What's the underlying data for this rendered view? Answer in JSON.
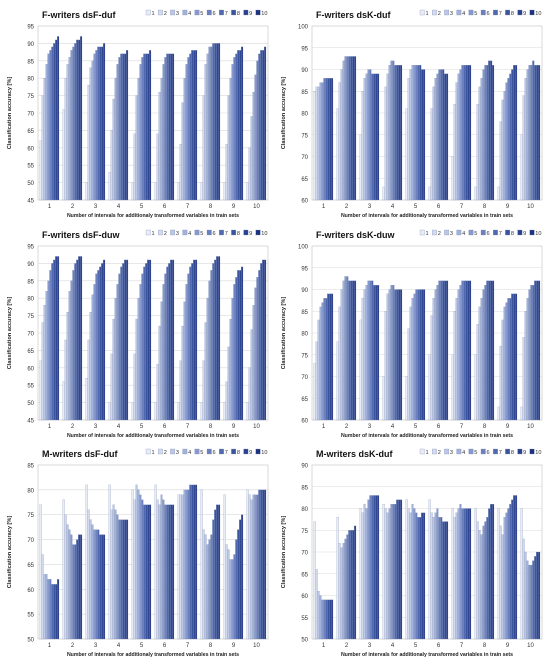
{
  "legend_labels": [
    "1",
    "2",
    "3",
    "4",
    "5",
    "6",
    "7",
    "8",
    "9",
    "10"
  ],
  "colors": [
    "#ffffff",
    "#e8ecf5",
    "#d3daed",
    "#bcc7e4",
    "#a2b1d9",
    "#8799cc",
    "#6b80bd",
    "#5068ad",
    "#3a539e",
    "#2a4190",
    "#1c3280"
  ],
  "chart_data": [
    {
      "type": "bar",
      "title": "F-writers dsF-duf",
      "xlabel": "Number of intervals for additionaly transformed variables in train sets",
      "ylabel": "Classification accuracy [%]",
      "ylim": [
        45,
        95
      ],
      "yticks": [
        45,
        50,
        55,
        60,
        65,
        70,
        75,
        80,
        85,
        90,
        95
      ],
      "categories": [
        "1",
        "2",
        "3",
        "4",
        "5",
        "6",
        "7",
        "8",
        "9",
        "10"
      ],
      "legend": "top-right",
      "grid": true,
      "values": [
        [
          62,
          75,
          80,
          84,
          87,
          88,
          89,
          90,
          91,
          92
        ],
        [
          71,
          80,
          84,
          86,
          88,
          89,
          90,
          91,
          91,
          92
        ],
        [
          50,
          78,
          83,
          85,
          87,
          88,
          89,
          89,
          89,
          90
        ],
        [
          53,
          65,
          74,
          80,
          84,
          86,
          87,
          87,
          87,
          88
        ],
        [
          50,
          64,
          75,
          80,
          84,
          86,
          87,
          87,
          87,
          88
        ],
        [
          50,
          64,
          76,
          80,
          84,
          86,
          87,
          87,
          87,
          87
        ],
        [
          50,
          61,
          73,
          80,
          84,
          86,
          87,
          88,
          88,
          88
        ],
        [
          50,
          75,
          84,
          87,
          89,
          89,
          90,
          90,
          90,
          90
        ],
        [
          50,
          61,
          75,
          80,
          84,
          86,
          87,
          88,
          88,
          89
        ],
        [
          50,
          60,
          69,
          76,
          81,
          85,
          87,
          88,
          88,
          89
        ]
      ]
    },
    {
      "type": "bar",
      "title": "F-writers dsK-duf",
      "xlabel": "Number of intervals for additionaly transformed variables in train sets",
      "ylabel": "Classification accuracy [%]",
      "ylim": [
        60,
        100
      ],
      "yticks": [
        60,
        65,
        70,
        75,
        80,
        85,
        90,
        95,
        100
      ],
      "categories": [
        "1",
        "2",
        "3",
        "4",
        "5",
        "6",
        "7",
        "8",
        "9",
        "10"
      ],
      "legend": "top-right",
      "grid": true,
      "values": [
        [
          85,
          86,
          86,
          87,
          87,
          88,
          88,
          88,
          88,
          88
        ],
        [
          81,
          87,
          90,
          92,
          93,
          93,
          93,
          93,
          93,
          93
        ],
        [
          75,
          85,
          88,
          89,
          90,
          90,
          89,
          89,
          89,
          89
        ],
        [
          63,
          86,
          89,
          91,
          92,
          92,
          91,
          91,
          91,
          91
        ],
        [
          81,
          88,
          90,
          91,
          91,
          91,
          91,
          91,
          90,
          90
        ],
        [
          63,
          81,
          86,
          88,
          89,
          90,
          90,
          90,
          89,
          89
        ],
        [
          70,
          82,
          87,
          89,
          90,
          91,
          91,
          91,
          91,
          91
        ],
        [
          63,
          82,
          86,
          88,
          90,
          91,
          91,
          92,
          92,
          91
        ],
        [
          63,
          78,
          83,
          85,
          87,
          88,
          89,
          90,
          91,
          91
        ],
        [
          75,
          84,
          88,
          90,
          91,
          91,
          92,
          91,
          91,
          91
        ]
      ]
    },
    {
      "type": "bar",
      "title": "F-writers dsF-duw",
      "xlabel": "Number of intervals for additionaly transformed variables in train sets",
      "ylabel": "Classification accuracy [%]",
      "ylim": [
        45,
        95
      ],
      "yticks": [
        45,
        50,
        55,
        60,
        65,
        70,
        75,
        80,
        85,
        90,
        95
      ],
      "categories": [
        "1",
        "2",
        "3",
        "4",
        "5",
        "6",
        "7",
        "8",
        "9",
        "10"
      ],
      "legend": "top-right",
      "grid": true,
      "values": [
        [
          62,
          73,
          78,
          82,
          85,
          88,
          90,
          91,
          92,
          92
        ],
        [
          56,
          68,
          76,
          82,
          85,
          88,
          90,
          91,
          92,
          92
        ],
        [
          57,
          68,
          76,
          81,
          84,
          87,
          88,
          89,
          90,
          91
        ],
        [
          50,
          64,
          74,
          80,
          84,
          87,
          89,
          90,
          91,
          91
        ],
        [
          50,
          64,
          74,
          80,
          84,
          87,
          89,
          90,
          91,
          91
        ],
        [
          50,
          61,
          72,
          79,
          84,
          87,
          89,
          90,
          91,
          91
        ],
        [
          50,
          62,
          72,
          79,
          84,
          87,
          89,
          90,
          91,
          91
        ],
        [
          50,
          62,
          73,
          80,
          85,
          88,
          90,
          91,
          92,
          92
        ],
        [
          50,
          56,
          66,
          74,
          80,
          84,
          86,
          88,
          88,
          89
        ],
        [
          50,
          60,
          71,
          78,
          83,
          86,
          88,
          90,
          91,
          91
        ]
      ]
    },
    {
      "type": "bar",
      "title": "F-writers dsK-duw",
      "xlabel": "Number of intervals for additionaly transformed variables in train sets",
      "ylabel": "Classification accuracy [%]",
      "ylim": [
        60,
        100
      ],
      "yticks": [
        60,
        65,
        70,
        75,
        80,
        85,
        90,
        95,
        100
      ],
      "categories": [
        "1",
        "2",
        "3",
        "4",
        "5",
        "6",
        "7",
        "8",
        "9",
        "10"
      ],
      "legend": "top-right",
      "grid": true,
      "values": [
        [
          73,
          78,
          83,
          86,
          87,
          88,
          88,
          89,
          89,
          89
        ],
        [
          78,
          86,
          90,
          92,
          93,
          93,
          92,
          92,
          92,
          92
        ],
        [
          83,
          88,
          90,
          91,
          92,
          92,
          92,
          91,
          91,
          91
        ],
        [
          70,
          85,
          89,
          90,
          91,
          91,
          90,
          90,
          90,
          90
        ],
        [
          70,
          81,
          86,
          88,
          89,
          90,
          90,
          90,
          90,
          90
        ],
        [
          75,
          84,
          88,
          90,
          91,
          92,
          92,
          92,
          92,
          92
        ],
        [
          75,
          85,
          88,
          90,
          91,
          92,
          92,
          92,
          92,
          92
        ],
        [
          75,
          82,
          86,
          88,
          90,
          91,
          92,
          92,
          92,
          92
        ],
        [
          63,
          77,
          83,
          86,
          87,
          88,
          88,
          89,
          89,
          89
        ],
        [
          63,
          79,
          85,
          88,
          90,
          91,
          91,
          92,
          92,
          92
        ]
      ]
    },
    {
      "type": "bar",
      "title": "M-writers dsF-duf",
      "xlabel": "Number of intervals for additionaly transformed variables in train sets",
      "ylabel": "Classification accuracy [%]",
      "ylim": [
        50,
        85
      ],
      "yticks": [
        50,
        55,
        60,
        65,
        70,
        75,
        80,
        85
      ],
      "categories": [
        "1",
        "2",
        "3",
        "4",
        "5",
        "6",
        "7",
        "8",
        "9",
        "10"
      ],
      "legend": "top-right",
      "grid": true,
      "values": [
        [
          77,
          67,
          63,
          63,
          62,
          62,
          61,
          61,
          61,
          62
        ],
        [
          78,
          75,
          73,
          72,
          71,
          69,
          69,
          70,
          71,
          71
        ],
        [
          81,
          76,
          74,
          73,
          72,
          72,
          72,
          71,
          71,
          71
        ],
        [
          81,
          76,
          77,
          76,
          75,
          74,
          74,
          74,
          74,
          74
        ],
        [
          80,
          78,
          81,
          80,
          79,
          78,
          77,
          77,
          77,
          77
        ],
        [
          81,
          78,
          77,
          79,
          78,
          77,
          77,
          77,
          77,
          77
        ],
        [
          79,
          79,
          79,
          80,
          80,
          80,
          81,
          81,
          81,
          81
        ],
        [
          80,
          72,
          71,
          69,
          70,
          71,
          74,
          76,
          77,
          77
        ],
        [
          79,
          69,
          68,
          66,
          66,
          67,
          70,
          72,
          74,
          75
        ],
        [
          80,
          79,
          78,
          79,
          79,
          79,
          80,
          80,
          80,
          80
        ]
      ]
    },
    {
      "type": "bar",
      "title": "M-writers dsK-duf",
      "xlabel": "Number of intervals for additionaly transformed variables in train sets",
      "ylabel": "Classification accuracy [%]",
      "ylim": [
        50,
        90
      ],
      "yticks": [
        50,
        55,
        60,
        65,
        70,
        75,
        80,
        85,
        90
      ],
      "categories": [
        "1",
        "2",
        "3",
        "4",
        "5",
        "6",
        "7",
        "8",
        "9",
        "10"
      ],
      "legend": "top-right",
      "grid": true,
      "values": [
        [
          77,
          66,
          61,
          60,
          59,
          59,
          59,
          59,
          59,
          59
        ],
        [
          78,
          72,
          71,
          72,
          73,
          74,
          75,
          75,
          75,
          76
        ],
        [
          80,
          79,
          81,
          80,
          82,
          83,
          83,
          83,
          83,
          83
        ],
        [
          81,
          80,
          79,
          80,
          81,
          81,
          81,
          82,
          82,
          82
        ],
        [
          82,
          80,
          79,
          81,
          80,
          79,
          78,
          78,
          79,
          79
        ],
        [
          82,
          79,
          78,
          79,
          80,
          78,
          78,
          77,
          77,
          77
        ],
        [
          80,
          78,
          79,
          80,
          81,
          80,
          80,
          80,
          80,
          80
        ],
        [
          80,
          77,
          75,
          74,
          76,
          77,
          78,
          80,
          81,
          81
        ],
        [
          80,
          76,
          74,
          78,
          79,
          80,
          81,
          82,
          83,
          83
        ],
        [
          80,
          73,
          70,
          68,
          67,
          67,
          68,
          69,
          70,
          70
        ]
      ]
    }
  ]
}
